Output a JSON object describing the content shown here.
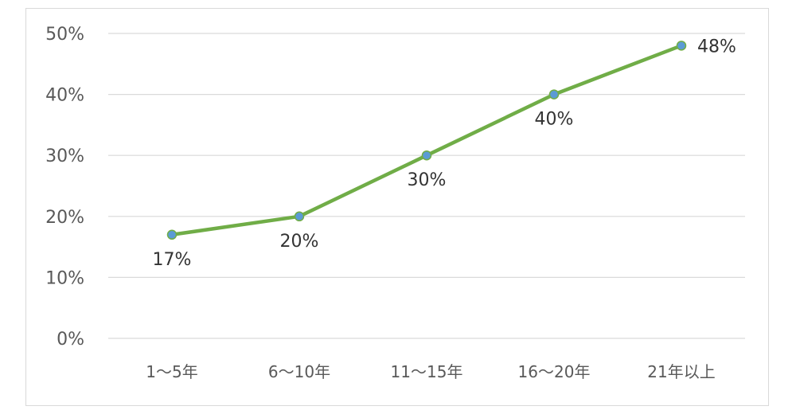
{
  "chart_data": {
    "type": "line",
    "categories": [
      "1～5年",
      "6～10年",
      "11～15年",
      "16～20年",
      "21年以上"
    ],
    "values": [
      17,
      20,
      30,
      40,
      48
    ],
    "data_labels": [
      "17%",
      "20%",
      "30%",
      "40%",
      "48%"
    ],
    "y_ticks": [
      0,
      10,
      20,
      30,
      40,
      50
    ],
    "y_tick_labels": [
      "0%",
      "10%",
      "20%",
      "30%",
      "40%",
      "50%"
    ],
    "ylim": [
      0,
      50
    ],
    "title": "",
    "xlabel": "",
    "ylabel": "",
    "grid": true,
    "legend": "none",
    "colors": {
      "line": "#70ad47",
      "marker_fill": "#5b9bd5",
      "grid": "#d9d9d9",
      "axis_text": "#595959",
      "label_text": "#333333"
    }
  }
}
